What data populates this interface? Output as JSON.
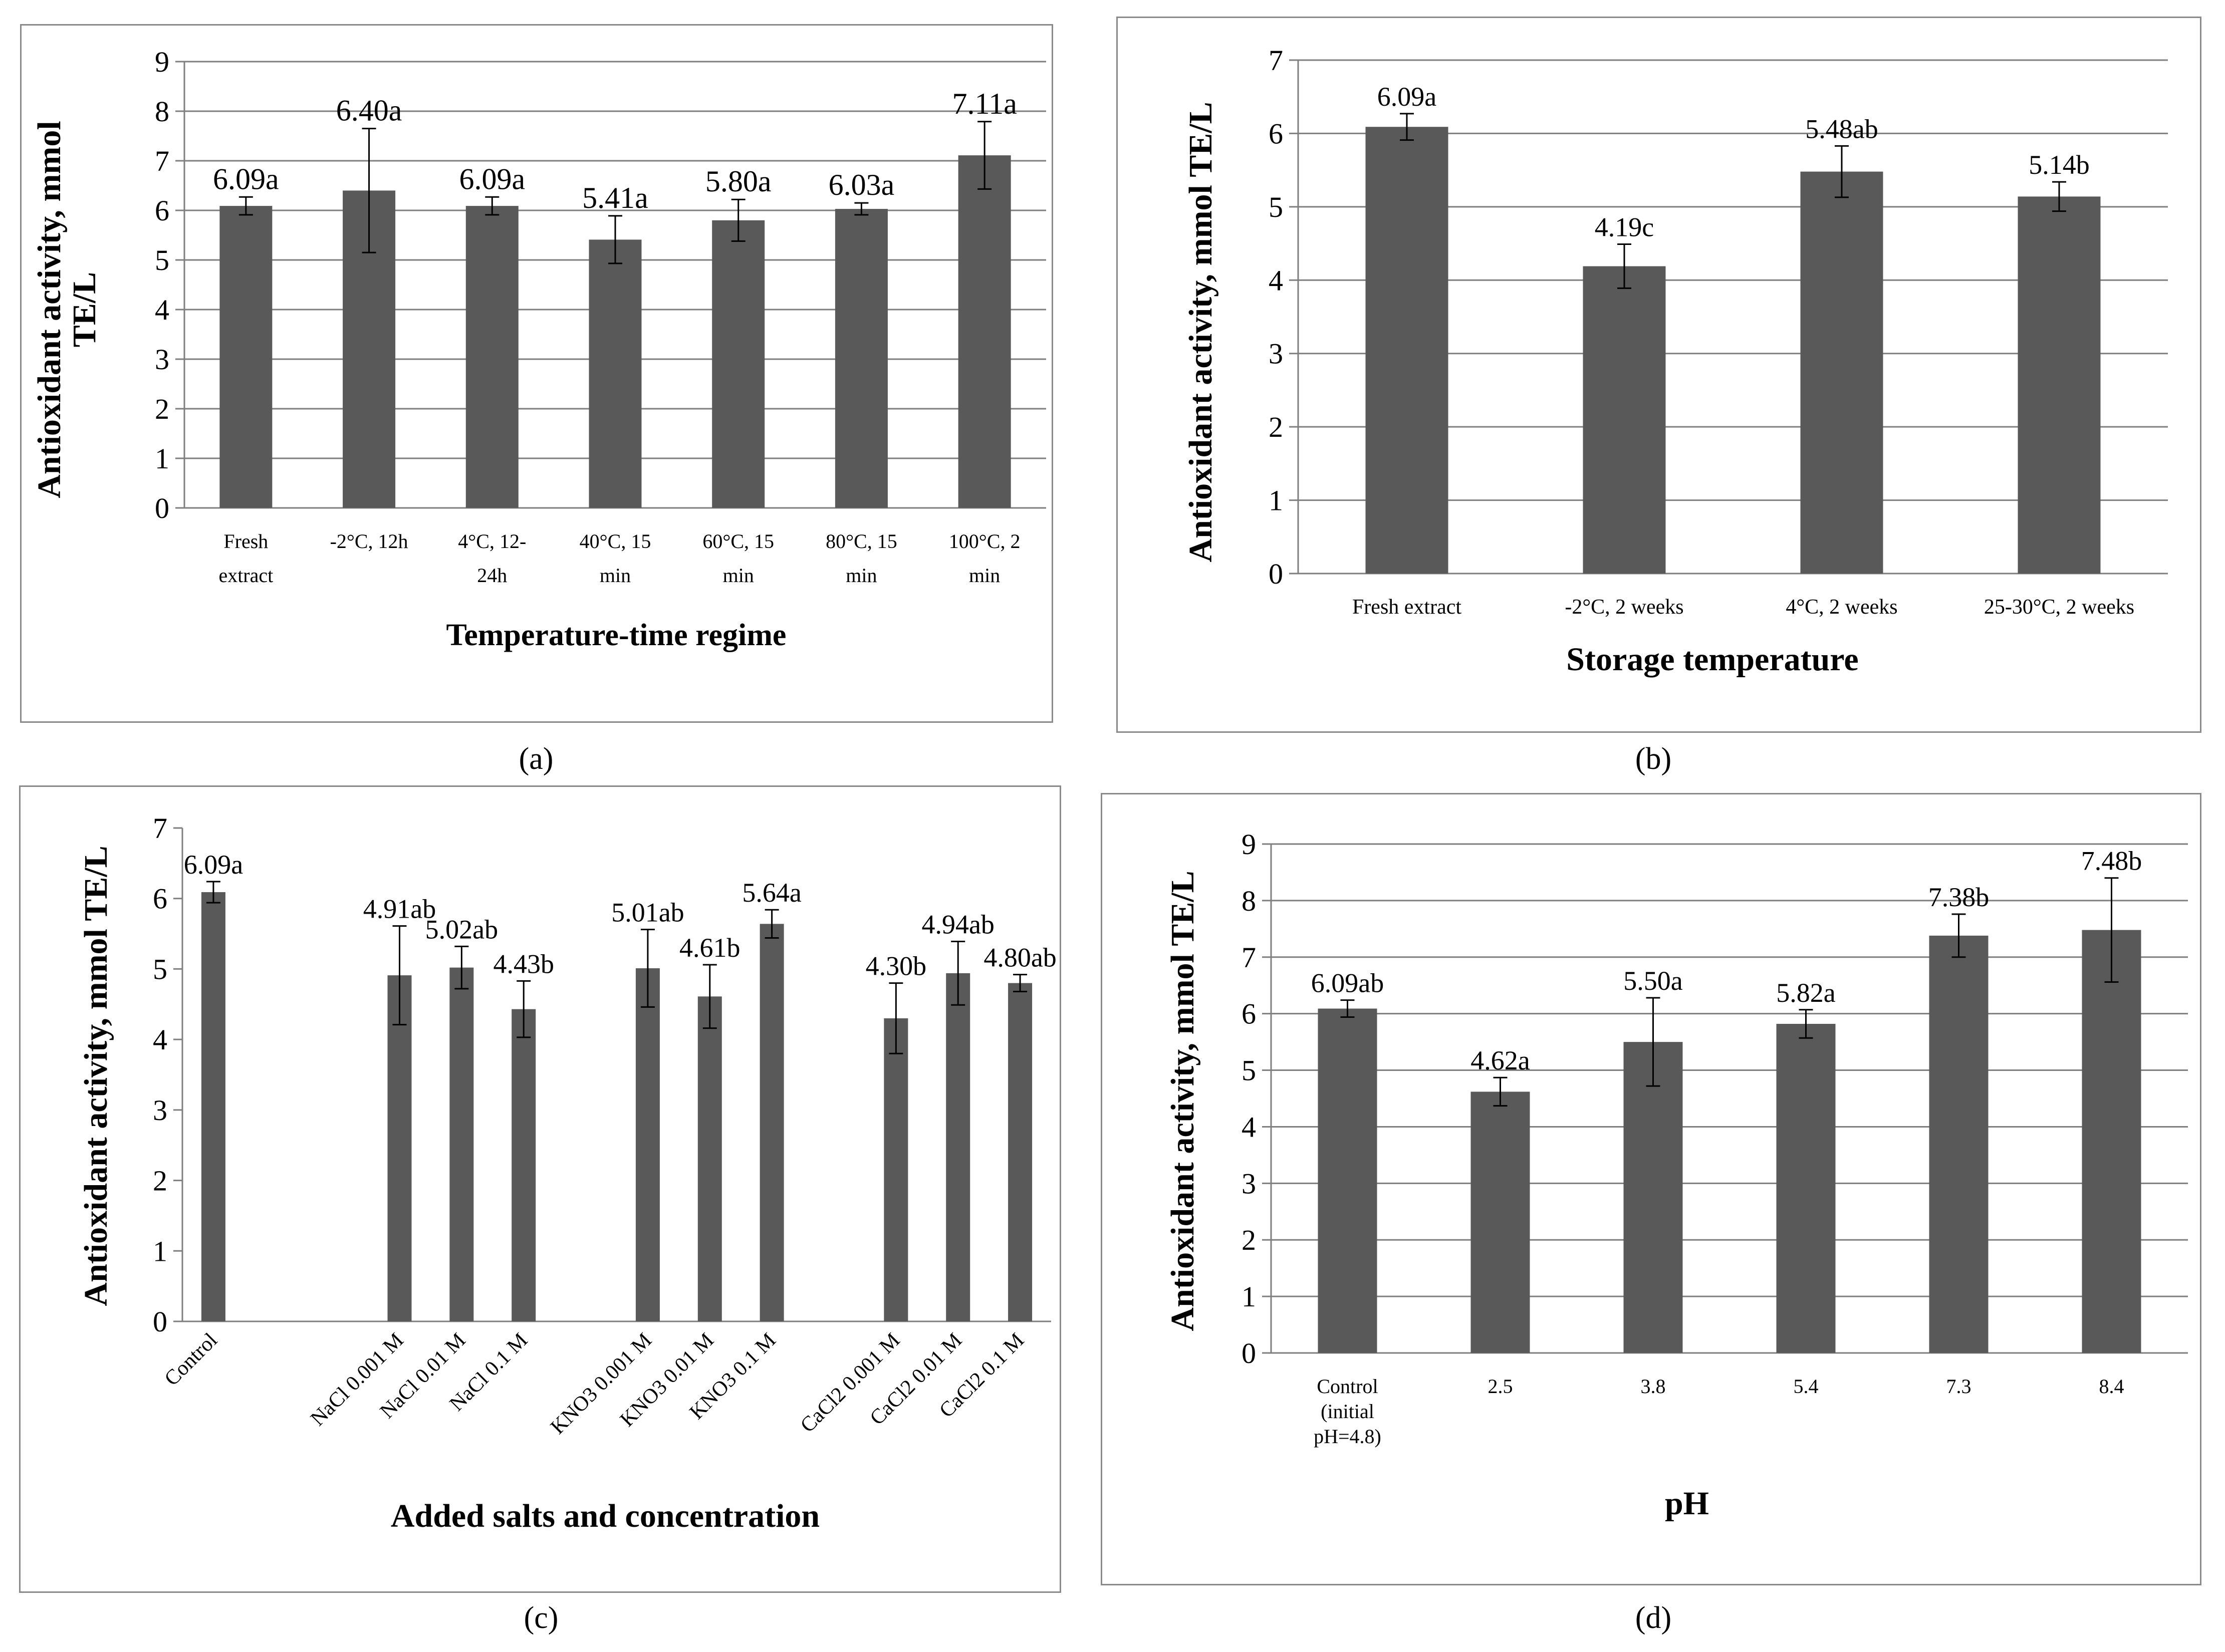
{
  "colors": {
    "bar": "#595959",
    "grid": "#7f7f7f",
    "axis": "#7f7f7f",
    "text": "#000000",
    "frame": "#8a8a8a"
  },
  "chart_data": [
    {
      "panel": "a",
      "type": "bar",
      "categories": [
        [
          "Fresh",
          "extract"
        ],
        [
          "-2°C, 12h"
        ],
        [
          "4°C, 12-",
          "24h"
        ],
        [
          "40°C, 15",
          "min"
        ],
        [
          "60°C, 15",
          "min"
        ],
        [
          "80°C, 15",
          "min"
        ],
        [
          "100°C, 2",
          "min"
        ]
      ],
      "values": [
        6.09,
        6.4,
        6.09,
        5.41,
        5.8,
        6.03,
        7.11
      ],
      "errors": [
        0.18,
        1.25,
        0.18,
        0.48,
        0.42,
        0.12,
        0.68
      ],
      "data_labels": [
        "6.09a",
        "6.40a",
        "6.09a",
        "5.41a",
        "5.80a",
        "6.03a",
        "7.11a"
      ],
      "ylabel": [
        "Antioxidant activity, mmol",
        "TE/L"
      ],
      "xlabel": "Temperature-time regime",
      "ylim": [
        0,
        9
      ],
      "yticks": [
        0,
        1,
        2,
        3,
        4,
        5,
        6,
        7,
        8,
        9
      ],
      "grid": true,
      "legend": "none"
    },
    {
      "panel": "b",
      "type": "bar",
      "categories": [
        [
          "Fresh extract"
        ],
        [
          "-2°C, 2 weeks"
        ],
        [
          "4°C, 2 weeks"
        ],
        [
          "25-30°C, 2 weeks"
        ]
      ],
      "values": [
        6.09,
        4.19,
        5.48,
        5.14
      ],
      "errors": [
        0.18,
        0.3,
        0.35,
        0.2
      ],
      "data_labels": [
        "6.09a",
        "4.19c",
        "5.48ab",
        "5.14b"
      ],
      "ylabel": [
        "Antioxidant activity, mmol TE/L"
      ],
      "xlabel": "Storage temperature",
      "ylim": [
        0,
        7
      ],
      "yticks": [
        0,
        1,
        2,
        3,
        4,
        5,
        6,
        7
      ],
      "grid": true,
      "legend": "none"
    },
    {
      "panel": "c",
      "type": "bar",
      "categories": [
        "Control",
        "NaCl 0.001 M",
        "NaCl 0.01 M",
        "NaCl 0.1 M",
        "KNO3 0.001 M",
        "KNO3 0.01 M",
        "KNO3 0.1 M",
        "CaCl2 0.001 M",
        "CaCl2 0.01 M",
        "CaCl2 0.1 M"
      ],
      "values": [
        6.09,
        4.91,
        5.02,
        4.43,
        5.01,
        4.61,
        5.64,
        4.3,
        4.94,
        4.8
      ],
      "errors": [
        0.15,
        0.7,
        0.3,
        0.4,
        0.55,
        0.45,
        0.2,
        0.5,
        0.45,
        0.12
      ],
      "data_labels": [
        "6.09a",
        "4.91ab",
        "5.02ab",
        "4.43b",
        "5.01ab",
        "4.61b",
        "5.64a",
        "4.30b",
        "4.94ab",
        "4.80ab"
      ],
      "ylabel": [
        "Antioxidant activity, mmol TE/L"
      ],
      "xlabel": "Added salts and  concentration",
      "ylim": [
        0,
        7
      ],
      "yticks": [
        0,
        1,
        2,
        3,
        4,
        5,
        6,
        7
      ],
      "grid": false,
      "legend": "none"
    },
    {
      "panel": "d",
      "type": "bar",
      "categories": [
        [
          "Control",
          "(initial",
          "pH=4.8)"
        ],
        [
          "2.5"
        ],
        [
          "3.8"
        ],
        [
          "5.4"
        ],
        [
          "7.3"
        ],
        [
          "8.4"
        ]
      ],
      "values": [
        6.09,
        4.62,
        5.5,
        5.82,
        7.38,
        7.48
      ],
      "errors": [
        0.15,
        0.25,
        0.78,
        0.25,
        0.38,
        0.92
      ],
      "data_labels": [
        "6.09ab",
        "4.62a",
        "5.50a",
        "5.82a",
        "7.38b",
        "7.48b"
      ],
      "ylabel": [
        "Antioxidant activity, mmol TE/L"
      ],
      "xlabel": "pH",
      "ylim": [
        0,
        9
      ],
      "yticks": [
        0,
        1,
        2,
        3,
        4,
        5,
        6,
        7,
        8,
        9
      ],
      "grid": true,
      "legend": "none"
    }
  ],
  "panel_letters": [
    "(a)",
    "(b)",
    "(c)",
    "(d)"
  ]
}
